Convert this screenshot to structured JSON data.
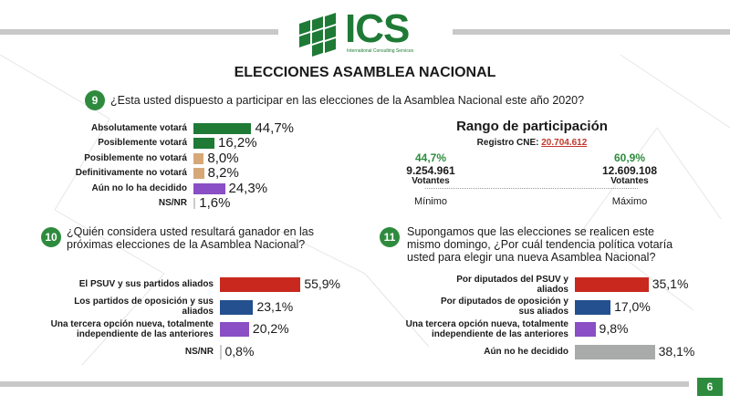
{
  "header": {
    "brand": "ICS",
    "tagline": "International Consulting Services"
  },
  "page_title": "ELECCIONES ASAMBLEA NACIONAL",
  "page_number": "6",
  "colors": {
    "green": "#1e7a35",
    "lightGreen": "#2e8b3e",
    "tan": "#d6a878",
    "purple": "#8a4fc4",
    "red": "#c8281e",
    "blue": "#24508f",
    "gray": "#a9abab"
  },
  "q9": {
    "number": "9",
    "text": "¿Esta usted dispuesto a participar en las elecciones de la Asamblea Nacional este año 2020?"
  },
  "q10": {
    "number": "10",
    "text_line1": "¿Quién considera usted resultará ganador en las",
    "text_line2": "próximas elecciones de la Asamblea Nacional?"
  },
  "q11": {
    "number": "11",
    "text_line1": "Supongamos que las elecciones se realicen este",
    "text_line2": "mismo domingo, ¿Por cuál tendencia política votaría",
    "text_line3": "usted para elegir una nueva Asamblea Nacional?"
  },
  "rango": {
    "title": "Rango de participación",
    "registro_label": "Registro CNE:",
    "registro_value": "20.704.612",
    "min_pct": "44,7%",
    "min_votes": "9.254.961",
    "min_votantes": "Votantes",
    "min_label": "Mínimo",
    "max_pct": "60,9%",
    "max_votes": "12.609.108",
    "max_votantes": "Votantes",
    "max_label": "Máximo"
  },
  "chart_data": [
    {
      "type": "bar",
      "orientation": "horizontal",
      "categories": [
        "Absolutamente votará",
        "Posiblemente votará",
        "Posiblemente no votará",
        "Definitivamente no votará",
        "Aún no lo ha decidido",
        "NS/NR"
      ],
      "values": [
        44.7,
        16.2,
        8.0,
        8.2,
        24.3,
        1.6
      ],
      "labels": [
        "44,7%",
        "16,2%",
        "8,0%",
        "8,2%",
        "24,3%",
        "1,6%"
      ],
      "colors": [
        "#1e7a35",
        "#1e7a35",
        "#d6a878",
        "#d6a878",
        "#8a4fc4",
        "#cccccc"
      ],
      "unit": "%"
    },
    {
      "type": "bar",
      "orientation": "horizontal",
      "categories": [
        [
          "El PSUV y sus partidos aliados"
        ],
        [
          "Los partidos de oposición y sus",
          "aliados"
        ],
        [
          "Una tercera opción nueva, totalmente",
          "independiente de las anteriores"
        ],
        [
          "NS/NR"
        ]
      ],
      "values": [
        55.9,
        23.1,
        20.2,
        0.8
      ],
      "labels": [
        "55,9%",
        "23,1%",
        "20,2%",
        "0,8%"
      ],
      "colors": [
        "#c8281e",
        "#24508f",
        "#8a4fc4",
        "#cccccc"
      ],
      "unit": "%"
    },
    {
      "type": "bar",
      "orientation": "horizontal",
      "categories": [
        [
          "Por diputados del PSUV y",
          "aliados"
        ],
        [
          "Por diputados de oposición y",
          "sus aliados"
        ],
        [
          "Una tercera opción nueva, totalmente",
          "independiente de las anteriores"
        ],
        [
          "Aún no he decidido"
        ]
      ],
      "values": [
        35.1,
        17.0,
        9.8,
        38.1
      ],
      "labels": [
        "35,1%",
        "17,0%",
        "9,8%",
        "38,1%"
      ],
      "colors": [
        "#c8281e",
        "#24508f",
        "#8a4fc4",
        "#a9abab"
      ],
      "unit": "%"
    }
  ]
}
